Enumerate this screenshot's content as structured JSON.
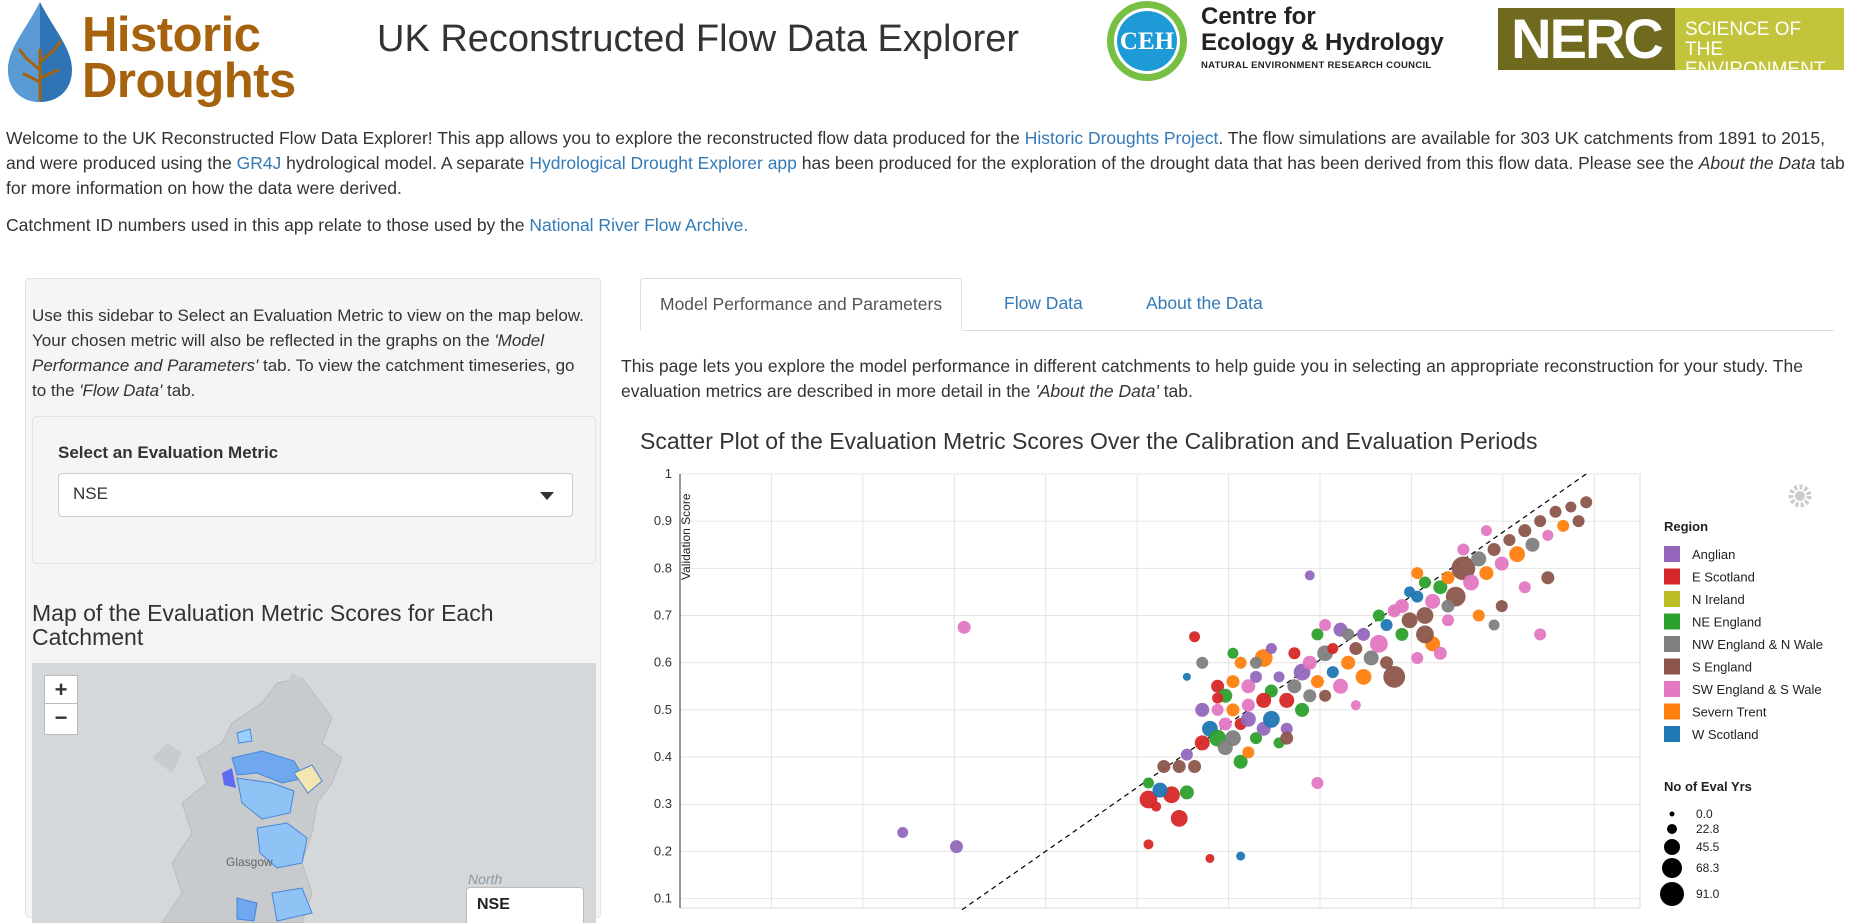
{
  "header": {
    "logo_line1": "Historic",
    "logo_line2": "Droughts",
    "title": "UK Reconstructed Flow Data Explorer",
    "ceh_badge": "CEH",
    "ceh_line1": "Centre for",
    "ceh_line2": "Ecology & Hydrology",
    "ceh_sub": "NATURAL ENVIRONMENT RESEARCH COUNCIL",
    "nerc_name": "NERC",
    "nerc_tag1": "SCIENCE OF THE",
    "nerc_tag2": "ENVIRONMENT"
  },
  "intro": {
    "p1_a": "Welcome to the UK Reconstructed Flow Data Explorer! This app allows you to explore the reconstructed flow data produced for the ",
    "p1_link1": "Historic Droughts Project",
    "p1_b": ". The flow simulations are available for 303 UK catchments from 1891 to 2015, and were produced using the ",
    "p1_link2": "GR4J",
    "p1_c": " hydrological model. A separate ",
    "p1_link3": "Hydrological Drought Explorer app",
    "p1_d": " has been produced for the exploration of the drought data that has been derived from this flow data. Please see the ",
    "p1_em": "About the Data",
    "p1_e": " tab for more information on how the data were derived.",
    "p2_a": "Catchment ID numbers used in this app relate to those used by the ",
    "p2_link": "National River Flow Archive."
  },
  "sidebar": {
    "text_a": "Use this sidebar to Select an Evaluation Metric to view on the map below. Your chosen metric will also be reflected in the graphs on the ",
    "text_em1": "'Model Performance and Parameters'",
    "text_b": " tab. To view the catchment timeseries, go to the ",
    "text_em2": "'Flow Data'",
    "text_c": " tab.",
    "metric_label": "Select an Evaluation Metric",
    "metric_value": "NSE",
    "map_title": "Map of the Evaluation Metric Scores for Each Catchment",
    "zoom_in": "+",
    "zoom_out": "−",
    "map_city": "Glasgow",
    "map_north": "North",
    "map_control": "NSE"
  },
  "tabs": [
    "Model Performance and Parameters",
    "Flow Data",
    "About the Data"
  ],
  "page": {
    "desc_a": "This page lets you explore the model performance in different catchments to help guide you in selecting an appropriate reconstruction for your study. The evaluation metrics are described in more detail in the ",
    "desc_em": "'About the Data'",
    "desc_b": " tab."
  },
  "colors": {
    "Anglian": "#9467bd",
    "E Scotland": "#d62728",
    "N Ireland": "#bcbd22",
    "NE England": "#2ca02c",
    "NW England & N Wales": "#7f7f7f",
    "S England": "#8c564b",
    "SW England & S Wales": "#e377c2",
    "Severn Trent": "#ff7f0e",
    "W Scotland": "#1f77b4"
  },
  "chart_data": {
    "type": "scatter",
    "title": "Scatter Plot of the Evaluation Metric Scores Over the Calibration and Evaluation Periods",
    "ylabel": "Validation Score",
    "ylim": [
      0.1,
      1
    ],
    "yticks": [
      "1",
      "0.9",
      "0.8",
      "0.7",
      "0.6",
      "0.5",
      "0.4",
      "0.3",
      "0.2",
      "0.1"
    ],
    "reference_line": "y = x (dashed)",
    "legend_title": "Region",
    "legend": [
      "Anglian",
      "E Scotland",
      "N Ireland",
      "NE England",
      "NW England & N Wale",
      "S England",
      "SW England & S Wale",
      "Severn Trent",
      "W Scotland"
    ],
    "size_title": "No of Eval Yrs",
    "size_legend": [
      "0.0",
      "22.8",
      "45.5",
      "68.3",
      "91.0"
    ],
    "points": [
      {
        "x": 0.29,
        "y": 0.24,
        "r": "Anglian",
        "s": 25
      },
      {
        "x": 0.36,
        "y": 0.21,
        "r": "Anglian",
        "s": 35
      },
      {
        "x": 0.37,
        "y": 0.675,
        "r": "SW England & S Wales",
        "s": 35
      },
      {
        "x": 0.82,
        "y": 0.785,
        "r": "Anglian",
        "s": 20
      },
      {
        "x": 0.73,
        "y": 0.19,
        "r": "W Scotland",
        "s": 15
      },
      {
        "x": 0.69,
        "y": 0.185,
        "r": "E Scotland",
        "s": 15
      },
      {
        "x": 0.65,
        "y": 0.27,
        "r": "E Scotland",
        "s": 55
      },
      {
        "x": 0.61,
        "y": 0.215,
        "r": "E Scotland",
        "s": 20
      },
      {
        "x": 0.61,
        "y": 0.31,
        "r": "E Scotland",
        "s": 60
      },
      {
        "x": 0.62,
        "y": 0.295,
        "r": "E Scotland",
        "s": 20
      },
      {
        "x": 0.64,
        "y": 0.32,
        "r": "E Scotland",
        "s": 55
      },
      {
        "x": 0.625,
        "y": 0.33,
        "r": "W Scotland",
        "s": 45
      },
      {
        "x": 0.66,
        "y": 0.325,
        "r": "NE England",
        "s": 40
      },
      {
        "x": 0.61,
        "y": 0.345,
        "r": "NE England",
        "s": 25
      },
      {
        "x": 0.63,
        "y": 0.38,
        "r": "S England",
        "s": 35
      },
      {
        "x": 0.65,
        "y": 0.38,
        "r": "S England",
        "s": 35
      },
      {
        "x": 0.67,
        "y": 0.38,
        "r": "S England",
        "s": 35
      },
      {
        "x": 0.66,
        "y": 0.405,
        "r": "Anglian",
        "s": 30
      },
      {
        "x": 0.83,
        "y": 0.345,
        "r": "SW England & S Wales",
        "s": 30
      },
      {
        "x": 0.67,
        "y": 0.655,
        "r": "E Scotland",
        "s": 25
      },
      {
        "x": 0.66,
        "y": 0.57,
        "r": "W Scotland",
        "s": 10
      },
      {
        "x": 0.68,
        "y": 0.6,
        "r": "NW England & N Wales",
        "s": 30
      },
      {
        "x": 0.68,
        "y": 0.43,
        "r": "E Scotland",
        "s": 45
      },
      {
        "x": 0.69,
        "y": 0.46,
        "r": "W Scotland",
        "s": 50
      },
      {
        "x": 0.7,
        "y": 0.44,
        "r": "NE England",
        "s": 55
      },
      {
        "x": 0.71,
        "y": 0.42,
        "r": "NW England & N Wales",
        "s": 45
      },
      {
        "x": 0.72,
        "y": 0.44,
        "r": "NW England & N Wales",
        "s": 50
      },
      {
        "x": 0.73,
        "y": 0.47,
        "r": "E Scotland",
        "s": 30
      },
      {
        "x": 0.7,
        "y": 0.5,
        "r": "SW England & S Wales",
        "s": 30
      },
      {
        "x": 0.72,
        "y": 0.5,
        "r": "Severn Trent",
        "s": 35
      },
      {
        "x": 0.74,
        "y": 0.48,
        "r": "Anglian",
        "s": 45
      },
      {
        "x": 0.75,
        "y": 0.44,
        "r": "NE England",
        "s": 30
      },
      {
        "x": 0.73,
        "y": 0.39,
        "r": "NE England",
        "s": 40
      },
      {
        "x": 0.74,
        "y": 0.41,
        "r": "Severn Trent",
        "s": 30
      },
      {
        "x": 0.76,
        "y": 0.46,
        "r": "Anglian",
        "s": 40
      },
      {
        "x": 0.77,
        "y": 0.48,
        "r": "W Scotland",
        "s": 55
      },
      {
        "x": 0.79,
        "y": 0.46,
        "r": "Anglian",
        "s": 30
      },
      {
        "x": 0.78,
        "y": 0.43,
        "r": "NE England",
        "s": 25
      },
      {
        "x": 0.7,
        "y": 0.55,
        "r": "E Scotland",
        "s": 35
      },
      {
        "x": 0.71,
        "y": 0.53,
        "r": "NE England",
        "s": 40
      },
      {
        "x": 0.72,
        "y": 0.56,
        "r": "Severn Trent",
        "s": 35
      },
      {
        "x": 0.74,
        "y": 0.55,
        "r": "SW England & S Wales",
        "s": 40
      },
      {
        "x": 0.75,
        "y": 0.57,
        "r": "Anglian",
        "s": 30
      },
      {
        "x": 0.76,
        "y": 0.61,
        "r": "Severn Trent",
        "s": 60
      },
      {
        "x": 0.77,
        "y": 0.54,
        "r": "NE England",
        "s": 35
      },
      {
        "x": 0.78,
        "y": 0.57,
        "r": "Anglian",
        "s": 25
      },
      {
        "x": 0.79,
        "y": 0.52,
        "r": "E Scotland",
        "s": 45
      },
      {
        "x": 0.8,
        "y": 0.55,
        "r": "NW England & N Wales",
        "s": 40
      },
      {
        "x": 0.81,
        "y": 0.58,
        "r": "Anglian",
        "s": 55
      },
      {
        "x": 0.8,
        "y": 0.62,
        "r": "E Scotland",
        "s": 30
      },
      {
        "x": 0.82,
        "y": 0.6,
        "r": "SW England & S Wales",
        "s": 40
      },
      {
        "x": 0.83,
        "y": 0.56,
        "r": "Severn Trent",
        "s": 35
      },
      {
        "x": 0.84,
        "y": 0.62,
        "r": "NW England & N Wales",
        "s": 50
      },
      {
        "x": 0.85,
        "y": 0.58,
        "r": "W Scotland",
        "s": 30
      },
      {
        "x": 0.86,
        "y": 0.55,
        "r": "SW England & S Wales",
        "s": 45
      },
      {
        "x": 0.87,
        "y": 0.6,
        "r": "Severn Trent",
        "s": 40
      },
      {
        "x": 0.88,
        "y": 0.63,
        "r": "S England",
        "s": 35
      },
      {
        "x": 0.86,
        "y": 0.67,
        "r": "Anglian",
        "s": 40
      },
      {
        "x": 0.84,
        "y": 0.68,
        "r": "SW England & S Wales",
        "s": 30
      },
      {
        "x": 0.83,
        "y": 0.66,
        "r": "NE England",
        "s": 30
      },
      {
        "x": 0.89,
        "y": 0.57,
        "r": "Severn Trent",
        "s": 50
      },
      {
        "x": 0.9,
        "y": 0.61,
        "r": "NW England & N Wales",
        "s": 45
      },
      {
        "x": 0.91,
        "y": 0.64,
        "r": "SW England & S Wales",
        "s": 60
      },
      {
        "x": 0.92,
        "y": 0.6,
        "r": "S England",
        "s": 35
      },
      {
        "x": 0.93,
        "y": 0.57,
        "r": "S England",
        "s": 80
      },
      {
        "x": 0.94,
        "y": 0.66,
        "r": "NE England",
        "s": 35
      },
      {
        "x": 0.92,
        "y": 0.68,
        "r": "W Scotland",
        "s": 30
      },
      {
        "x": 0.95,
        "y": 0.69,
        "r": "S England",
        "s": 50
      },
      {
        "x": 0.94,
        "y": 0.72,
        "r": "SW England & S Wales",
        "s": 40
      },
      {
        "x": 0.96,
        "y": 0.74,
        "r": "W Scotland",
        "s": 30
      },
      {
        "x": 0.97,
        "y": 0.7,
        "r": "S England",
        "s": 55
      },
      {
        "x": 0.98,
        "y": 0.73,
        "r": "SW England & S Wales",
        "s": 45
      },
      {
        "x": 0.99,
        "y": 0.76,
        "r": "NE England",
        "s": 40
      },
      {
        "x": 1.0,
        "y": 0.78,
        "r": "Severn Trent",
        "s": 35
      },
      {
        "x": 1.01,
        "y": 0.74,
        "r": "S England",
        "s": 70
      },
      {
        "x": 1.02,
        "y": 0.8,
        "r": "S England",
        "s": 90
      },
      {
        "x": 1.03,
        "y": 0.77,
        "r": "SW England & S Wales",
        "s": 50
      },
      {
        "x": 1.04,
        "y": 0.82,
        "r": "NW England & N Wales",
        "s": 45
      },
      {
        "x": 1.05,
        "y": 0.79,
        "r": "Severn Trent",
        "s": 40
      },
      {
        "x": 1.06,
        "y": 0.84,
        "r": "S England",
        "s": 35
      },
      {
        "x": 1.07,
        "y": 0.81,
        "r": "SW England & S Wales",
        "s": 40
      },
      {
        "x": 1.08,
        "y": 0.86,
        "r": "S England",
        "s": 30
      },
      {
        "x": 1.09,
        "y": 0.83,
        "r": "Severn Trent",
        "s": 50
      },
      {
        "x": 1.1,
        "y": 0.88,
        "r": "S England",
        "s": 35
      },
      {
        "x": 1.11,
        "y": 0.85,
        "r": "NW England & N Wales",
        "s": 40
      },
      {
        "x": 1.12,
        "y": 0.9,
        "r": "S England",
        "s": 30
      },
      {
        "x": 1.13,
        "y": 0.87,
        "r": "SW England & S Wales",
        "s": 25
      },
      {
        "x": 1.14,
        "y": 0.92,
        "r": "S England",
        "s": 30
      },
      {
        "x": 1.15,
        "y": 0.89,
        "r": "Severn Trent",
        "s": 30
      },
      {
        "x": 1.16,
        "y": 0.93,
        "r": "S England",
        "s": 25
      },
      {
        "x": 1.18,
        "y": 0.94,
        "r": "S England",
        "s": 30
      },
      {
        "x": 1.17,
        "y": 0.9,
        "r": "S England",
        "s": 30
      },
      {
        "x": 1.13,
        "y": 0.78,
        "r": "S England",
        "s": 35
      },
      {
        "x": 1.1,
        "y": 0.76,
        "r": "SW England & S Wales",
        "s": 30
      },
      {
        "x": 1.07,
        "y": 0.72,
        "r": "S England",
        "s": 30
      },
      {
        "x": 1.04,
        "y": 0.7,
        "r": "Severn Trent",
        "s": 30
      },
      {
        "x": 1.0,
        "y": 0.69,
        "r": "SW England & S Wales",
        "s": 30
      },
      {
        "x": 1.06,
        "y": 0.68,
        "r": "NW England & N Wales",
        "s": 25
      },
      {
        "x": 1.02,
        "y": 0.84,
        "r": "SW England & S Wales",
        "s": 30
      },
      {
        "x": 1.05,
        "y": 0.88,
        "r": "SW England & S Wales",
        "s": 25
      },
      {
        "x": 0.98,
        "y": 0.64,
        "r": "Severn Trent",
        "s": 45
      },
      {
        "x": 0.97,
        "y": 0.66,
        "r": "S England",
        "s": 60
      },
      {
        "x": 0.99,
        "y": 0.62,
        "r": "SW England & S Wales",
        "s": 35
      },
      {
        "x": 1.12,
        "y": 0.66,
        "r": "SW England & S Wales",
        "s": 30
      },
      {
        "x": 0.96,
        "y": 0.61,
        "r": "SW England & S Wales",
        "s": 30
      },
      {
        "x": 0.88,
        "y": 0.51,
        "r": "SW England & S Wales",
        "s": 20
      },
      {
        "x": 0.79,
        "y": 0.44,
        "r": "S England",
        "s": 35
      },
      {
        "x": 0.7,
        "y": 0.525,
        "r": "E Scotland",
        "s": 25
      },
      {
        "x": 0.68,
        "y": 0.5,
        "r": "Anglian",
        "s": 40
      },
      {
        "x": 0.71,
        "y": 0.47,
        "r": "SW England & S Wales",
        "s": 35
      },
      {
        "x": 0.74,
        "y": 0.51,
        "r": "SW England & S Wales",
        "s": 35
      },
      {
        "x": 0.76,
        "y": 0.52,
        "r": "E Scotland",
        "s": 45
      },
      {
        "x": 0.82,
        "y": 0.53,
        "r": "NW England & N Wales",
        "s": 35
      },
      {
        "x": 0.85,
        "y": 0.63,
        "r": "E Scotland",
        "s": 25
      },
      {
        "x": 0.87,
        "y": 0.66,
        "r": "NW England & N Wales",
        "s": 30
      },
      {
        "x": 0.89,
        "y": 0.66,
        "r": "Anglian",
        "s": 35
      },
      {
        "x": 0.91,
        "y": 0.7,
        "r": "NE England",
        "s": 30
      },
      {
        "x": 0.93,
        "y": 0.71,
        "r": "SW England & S Wales",
        "s": 35
      },
      {
        "x": 0.95,
        "y": 0.75,
        "r": "W Scotland",
        "s": 25
      },
      {
        "x": 0.97,
        "y": 0.77,
        "r": "NE England",
        "s": 30
      },
      {
        "x": 0.96,
        "y": 0.79,
        "r": "Severn Trent",
        "s": 30
      },
      {
        "x": 1.0,
        "y": 0.72,
        "r": "NW England & N Wales",
        "s": 35
      },
      {
        "x": 0.81,
        "y": 0.5,
        "r": "NE England",
        "s": 40
      },
      {
        "x": 0.84,
        "y": 0.53,
        "r": "S England",
        "s": 30
      },
      {
        "x": 0.75,
        "y": 0.6,
        "r": "NW England & N Wales",
        "s": 30
      },
      {
        "x": 0.77,
        "y": 0.63,
        "r": "Anglian",
        "s": 25
      },
      {
        "x": 0.73,
        "y": 0.6,
        "r": "Severn Trent",
        "s": 30
      },
      {
        "x": 0.72,
        "y": 0.62,
        "r": "NE England",
        "s": 25
      }
    ]
  }
}
